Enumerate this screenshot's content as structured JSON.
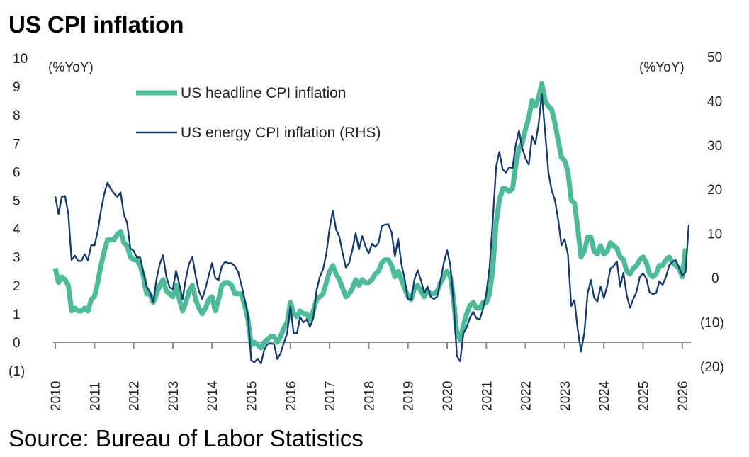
{
  "chart_data": {
    "type": "line",
    "title": "US CPI inflation",
    "source": "Source: Bureau of Labor Statistics",
    "left_axis": {
      "unit_label": "(%YoY)",
      "ylim": [
        -1,
        10
      ],
      "ticks": [
        -1,
        0,
        1,
        2,
        3,
        4,
        5,
        6,
        7,
        8,
        9,
        10
      ],
      "tick_labels": [
        "(1)",
        "0",
        "1",
        "2",
        "3",
        "4",
        "5",
        "6",
        "7",
        "8",
        "9",
        "10"
      ]
    },
    "right_axis": {
      "unit_label": "(%YoY)",
      "ylim": [
        -20,
        50
      ],
      "ticks": [
        -20,
        -10,
        0,
        10,
        20,
        30,
        40,
        50
      ],
      "tick_labels": [
        "(20)",
        "(10)",
        "0",
        "10",
        "20",
        "30",
        "40",
        "50"
      ]
    },
    "x_tick_labels": [
      "2010",
      "2011",
      "2012",
      "2013",
      "2014",
      "2015",
      "2016",
      "2017",
      "2018",
      "2019",
      "2020",
      "2021",
      "2022",
      "2023",
      "2024",
      "2025",
      "2026"
    ],
    "x_start": "2010-01",
    "frequency": "monthly",
    "legend_position": "top-left",
    "series": [
      {
        "name": "US headline CPI inflation",
        "axis": "left",
        "color": "#4dba9a",
        "values": [
          2.6,
          2.1,
          2.3,
          2.2,
          2.0,
          1.1,
          1.2,
          1.1,
          1.1,
          1.2,
          1.1,
          1.5,
          1.6,
          2.1,
          2.7,
          3.2,
          3.6,
          3.6,
          3.6,
          3.8,
          3.9,
          3.5,
          3.4,
          3.0,
          2.9,
          2.9,
          2.7,
          2.3,
          1.7,
          1.7,
          1.4,
          1.7,
          2.0,
          2.2,
          1.8,
          1.7,
          1.6,
          2.0,
          1.5,
          1.1,
          1.4,
          1.8,
          2.0,
          1.5,
          1.2,
          1.0,
          1.2,
          1.5,
          1.6,
          1.1,
          1.5,
          2.0,
          2.1,
          2.1,
          2.0,
          1.7,
          1.7,
          1.7,
          1.3,
          0.8,
          -0.1,
          0.0,
          -0.1,
          -0.2,
          0.0,
          0.1,
          0.2,
          0.2,
          0.0,
          0.2,
          0.5,
          0.7,
          1.4,
          1.0,
          0.9,
          1.1,
          1.0,
          1.0,
          0.8,
          1.1,
          1.5,
          1.6,
          1.7,
          2.1,
          2.5,
          2.7,
          2.4,
          2.2,
          1.9,
          1.6,
          1.7,
          1.9,
          2.2,
          2.0,
          2.2,
          2.1,
          2.1,
          2.2,
          2.4,
          2.5,
          2.8,
          2.9,
          2.9,
          2.7,
          2.3,
          2.5,
          2.2,
          1.9,
          1.6,
          1.5,
          1.9,
          2.0,
          1.8,
          1.6,
          1.8,
          1.7,
          1.7,
          1.8,
          2.1,
          2.3,
          2.5,
          2.3,
          1.5,
          0.3,
          0.1,
          0.6,
          1.0,
          1.3,
          1.4,
          1.2,
          1.2,
          1.4,
          1.4,
          1.7,
          2.6,
          4.2,
          5.0,
          5.4,
          5.4,
          5.3,
          5.4,
          6.2,
          6.8,
          7.0,
          7.5,
          7.9,
          8.5,
          8.3,
          8.6,
          9.1,
          8.5,
          8.3,
          8.2,
          7.7,
          7.1,
          6.5,
          6.4,
          6.0,
          5.0,
          4.9,
          4.0,
          3.0,
          3.2,
          3.7,
          3.7,
          3.2,
          3.1,
          3.4,
          3.1,
          3.2,
          3.5,
          3.4,
          3.3,
          3.0,
          2.9,
          2.5,
          2.4,
          2.6,
          2.7,
          2.9,
          3.0,
          2.8,
          2.4,
          2.3,
          2.4,
          2.7,
          2.7,
          2.9,
          3.0,
          2.8,
          2.7,
          2.6,
          2.3,
          3.3
        ]
      },
      {
        "name": "US energy CPI inflation (RHS)",
        "axis": "right",
        "color": "#13396e",
        "values": [
          18.4,
          14.4,
          18.3,
          18.5,
          14.5,
          4.0,
          5.0,
          3.8,
          3.8,
          5.3,
          3.9,
          7.4,
          7.3,
          10.5,
          15.2,
          19.0,
          21.5,
          20.1,
          19.1,
          18.3,
          19.3,
          14.3,
          12.4,
          6.6,
          6.1,
          4.6,
          4.6,
          1.1,
          -2.0,
          -3.3,
          -5.5,
          -0.3,
          3.1,
          5.1,
          0.3,
          -2.2,
          -2.6,
          1.6,
          -1.5,
          -4.9,
          -0.2,
          3.2,
          4.7,
          0.3,
          -3.1,
          -4.8,
          -2.4,
          0.5,
          3.3,
          0.0,
          -0.6,
          2.6,
          3.6,
          3.3,
          3.3,
          2.6,
          1.3,
          -1.6,
          -4.9,
          -8.4,
          -18.7,
          -19.1,
          -18.3,
          -19.4,
          -16.3,
          -15.0,
          -14.9,
          -15.0,
          -18.4,
          -17.1,
          -14.7,
          -12.6,
          -6.5,
          -12.5,
          -12.6,
          -8.9,
          -10.1,
          -9.4,
          -11.1,
          -9.2,
          -2.9,
          0.2,
          1.9,
          5.4,
          11.1,
          15.2,
          10.9,
          9.3,
          5.6,
          2.3,
          3.4,
          6.4,
          10.1,
          6.4,
          9.4,
          7.1,
          5.5,
          7.7,
          7.0,
          7.9,
          11.7,
          12.0,
          12.1,
          10.2,
          4.8,
          8.9,
          3.1,
          -0.3,
          -4.9,
          -5.0,
          -0.4,
          1.7,
          -0.6,
          -3.4,
          -2.0,
          -4.4,
          -4.8,
          -4.2,
          -0.6,
          3.4,
          6.2,
          2.8,
          -5.7,
          -17.7,
          -18.9,
          -12.6,
          -11.2,
          -9.0,
          -7.7,
          -9.2,
          -9.4,
          -7.0,
          -3.6,
          2.4,
          13.2,
          25.1,
          28.5,
          24.5,
          23.8,
          25.0,
          24.8,
          30.0,
          33.3,
          29.3,
          27.0,
          25.6,
          32.0,
          30.3,
          34.6,
          41.6,
          32.9,
          23.8,
          19.8,
          17.6,
          13.1,
          7.3,
          8.7,
          5.2,
          -6.4,
          -5.1,
          -11.7,
          -16.7,
          -12.5,
          -3.6,
          -0.5,
          -4.5,
          -5.4,
          -2.0,
          -4.6,
          -1.9,
          2.1,
          2.6,
          3.7,
          -2.0,
          1.1,
          -4.0,
          -6.8,
          -4.8,
          -3.2,
          0.2,
          1.0,
          -0.2,
          -3.3,
          -3.7,
          -3.5,
          -0.8,
          -1.6,
          0.2,
          2.8,
          3.6,
          4.0,
          2.3,
          0.5,
          1.2,
          12.0
        ]
      }
    ]
  }
}
